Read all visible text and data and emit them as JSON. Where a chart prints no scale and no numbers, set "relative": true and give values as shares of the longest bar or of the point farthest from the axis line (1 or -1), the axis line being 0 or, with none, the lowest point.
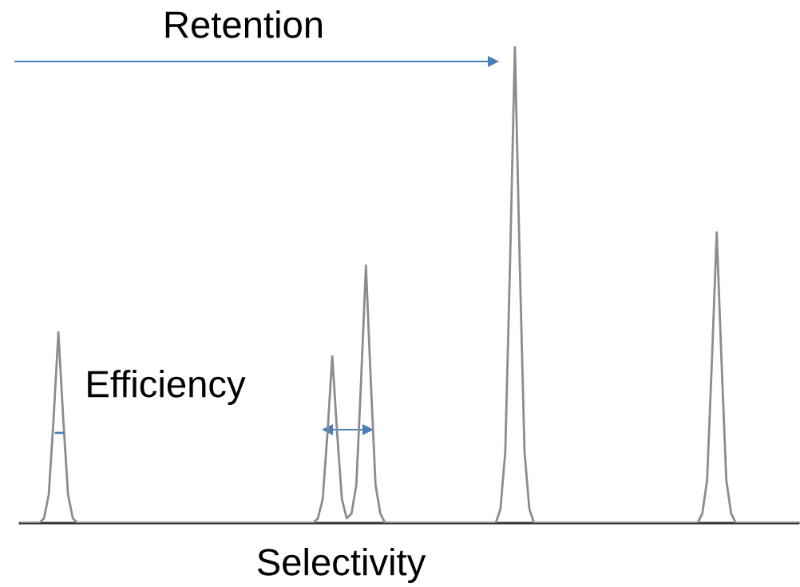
{
  "chart_data": {
    "type": "line",
    "relative": true,
    "color": "#8c8c8c",
    "annotations": [
      "Retention",
      "Efficiency",
      "Selectivity"
    ],
    "categories": [
      null,
      null,
      null,
      null,
      null,
      null,
      null,
      null,
      null,
      null,
      null,
      null,
      null,
      null,
      null,
      null,
      null,
      null,
      null,
      null,
      null,
      null,
      null,
      null,
      null,
      null,
      null,
      null,
      null,
      null,
      null,
      null,
      null,
      null,
      null,
      null,
      null,
      null,
      null,
      null,
      null,
      null,
      null,
      null,
      null,
      null,
      null,
      null,
      null,
      null,
      null,
      null,
      null,
      null,
      null,
      null,
      null,
      null,
      null,
      null,
      null,
      null,
      null,
      null,
      null,
      null,
      null,
      null,
      null,
      null,
      null,
      null,
      null,
      null,
      null,
      null,
      null,
      null,
      null,
      null,
      null,
      null,
      null,
      null,
      null,
      null,
      null,
      null,
      null,
      null,
      null,
      null,
      null,
      null,
      null,
      null,
      null,
      null,
      null,
      null,
      null,
      null,
      null,
      null,
      null,
      null,
      null,
      null,
      null,
      null,
      null,
      null,
      null,
      null,
      null,
      null,
      null,
      null,
      null,
      null,
      null,
      null,
      null,
      null,
      null,
      null,
      null,
      null,
      null,
      null,
      null,
      null,
      null,
      null,
      null,
      null,
      null,
      null,
      null,
      null,
      null,
      null,
      null,
      null,
      null,
      null,
      null,
      null,
      null,
      null,
      null,
      null,
      null,
      null,
      null,
      null,
      null,
      null,
      null,
      null,
      null,
      null,
      null
    ],
    "values": [
      0,
      0,
      0,
      0,
      0,
      0.01,
      0.06,
      0.22,
      0.4,
      0.22,
      0.06,
      0.01,
      0,
      0,
      0,
      0,
      0,
      0,
      0,
      0,
      0,
      0,
      0,
      0,
      0,
      0,
      0,
      0,
      0,
      0,
      0,
      0,
      0,
      0,
      0,
      0,
      0,
      0,
      0,
      0,
      0,
      0,
      0,
      0,
      0,
      0,
      0,
      0,
      0,
      0,
      0,
      0,
      0,
      0,
      0,
      0,
      0,
      0,
      0,
      0,
      0,
      0,
      0.01,
      0.05,
      0.19,
      0.35,
      0.19,
      0.05,
      0.01,
      0.02,
      0.08,
      0.3,
      0.54,
      0.3,
      0.08,
      0.02,
      0,
      0,
      0,
      0,
      0,
      0,
      0,
      0,
      0,
      0,
      0,
      0,
      0,
      0,
      0,
      0,
      0,
      0,
      0,
      0,
      0,
      0,
      0,
      0,
      0.03,
      0.15,
      0.55,
      1,
      0.55,
      0.15,
      0.03,
      0,
      0,
      0,
      0,
      0,
      0,
      0,
      0,
      0,
      0,
      0,
      0,
      0,
      0,
      0,
      0,
      0,
      0,
      0,
      0,
      0,
      0,
      0,
      0,
      0,
      0,
      0,
      0,
      0,
      0,
      0,
      0,
      0,
      0,
      0,
      0.02,
      0.09,
      0.34,
      0.61,
      0.34,
      0.09,
      0.02,
      0,
      0,
      0,
      0,
      0,
      0,
      0,
      0,
      0,
      0,
      0,
      0,
      0,
      0
    ]
  }
}
